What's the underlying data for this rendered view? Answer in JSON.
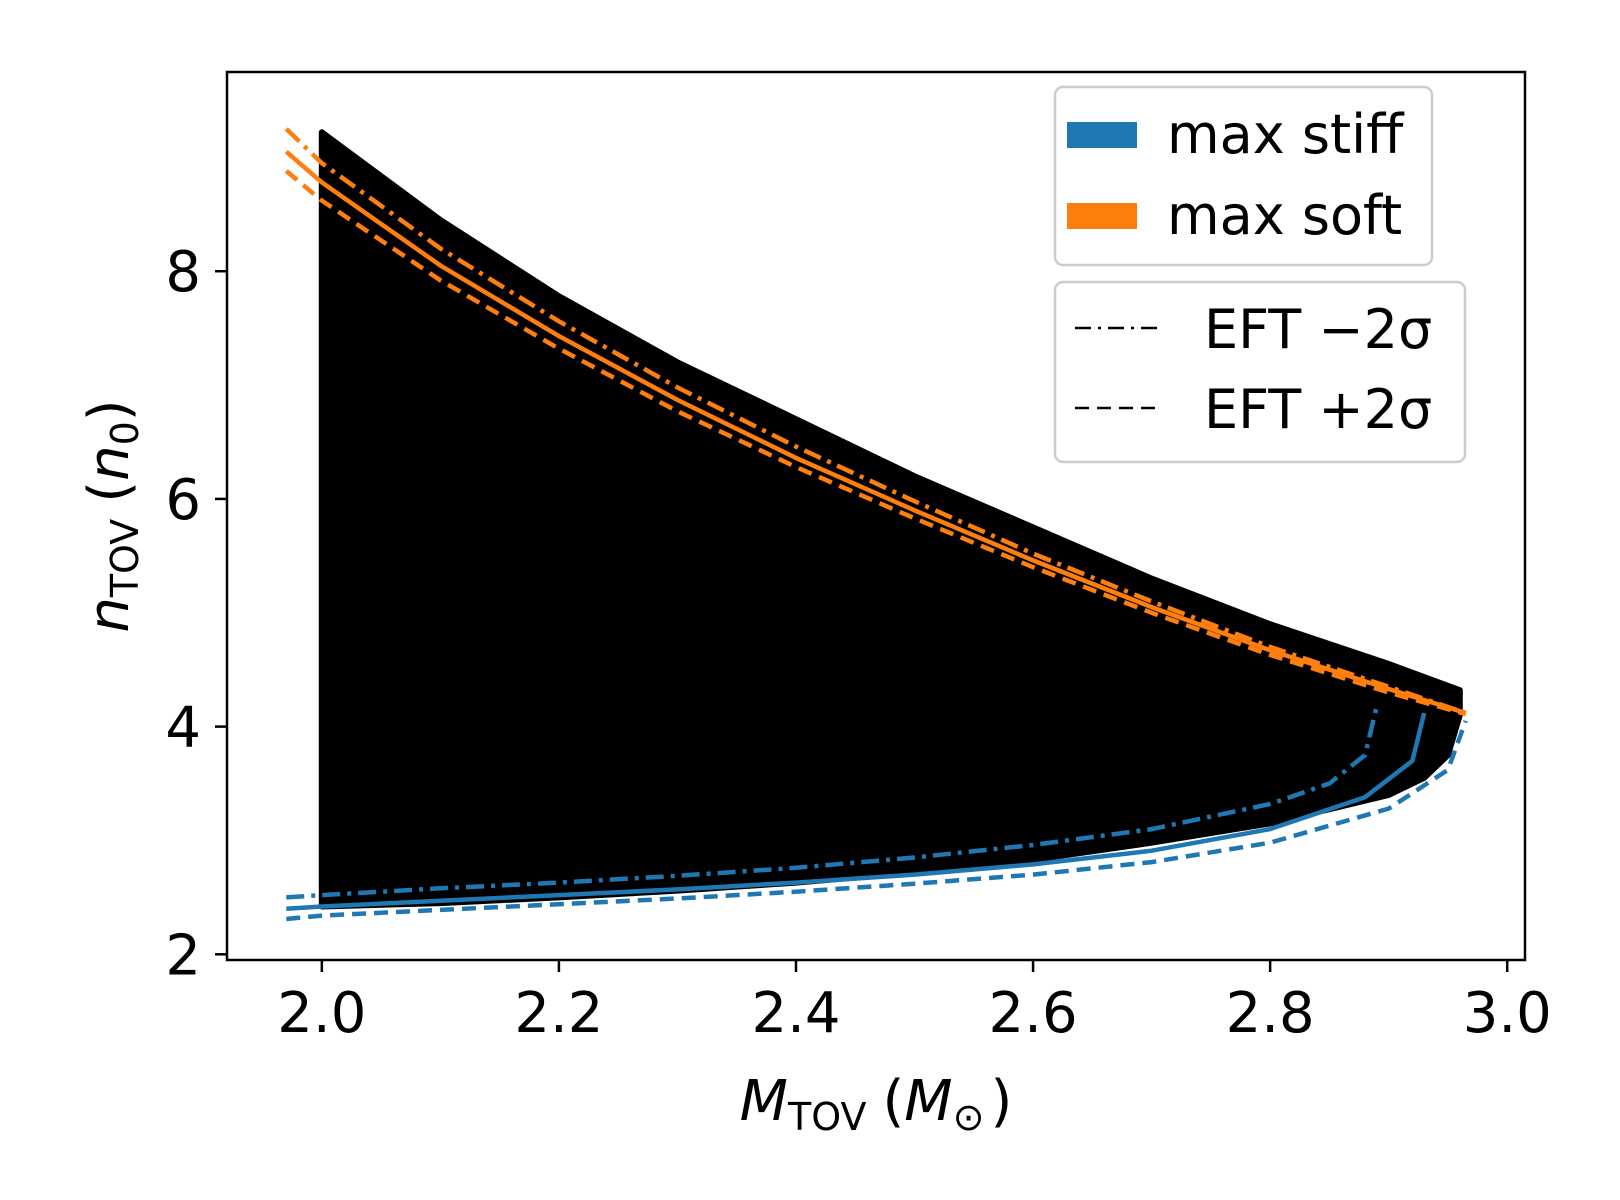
{
  "chart_data": {
    "type": "scatter",
    "title": "",
    "xlabel": {
      "main": "M",
      "sub": "TOV",
      "unit_open": "(",
      "unit_main": "M",
      "unit_sub": "⊙",
      "unit_close": ")"
    },
    "ylabel": {
      "main": "n",
      "sub": "TOV",
      "unit_open": "(",
      "unit_main": "n",
      "unit_sub": "0",
      "unit_close": ")"
    },
    "xlim": [
      1.92,
      3.015
    ],
    "ylim": [
      1.95,
      9.75
    ],
    "x_ticks": [
      2.0,
      2.2,
      2.4,
      2.6,
      2.8,
      3.0
    ],
    "x_tick_labels": [
      "2.0",
      "2.2",
      "2.4",
      "2.6",
      "2.8",
      "3.0"
    ],
    "y_ticks": [
      2,
      4,
      6,
      8
    ],
    "y_tick_labels": [
      "2",
      "4",
      "6",
      "8"
    ],
    "grid": false,
    "scatter_region": {
      "color": "#000000",
      "upper_boundary": [
        {
          "x": 2.0,
          "y": 9.22
        },
        {
          "x": 2.1,
          "y": 8.45
        },
        {
          "x": 2.2,
          "y": 7.78
        },
        {
          "x": 2.3,
          "y": 7.2
        },
        {
          "x": 2.4,
          "y": 6.7
        },
        {
          "x": 2.5,
          "y": 6.2
        },
        {
          "x": 2.6,
          "y": 5.75
        },
        {
          "x": 2.7,
          "y": 5.3
        },
        {
          "x": 2.8,
          "y": 4.9
        },
        {
          "x": 2.9,
          "y": 4.55
        },
        {
          "x": 2.96,
          "y": 4.32
        }
      ],
      "lower_boundary": [
        {
          "x": 2.96,
          "y": 4.1
        },
        {
          "x": 2.95,
          "y": 3.75
        },
        {
          "x": 2.93,
          "y": 3.55
        },
        {
          "x": 2.9,
          "y": 3.4
        },
        {
          "x": 2.8,
          "y": 3.15
        },
        {
          "x": 2.7,
          "y": 2.98
        },
        {
          "x": 2.6,
          "y": 2.83
        },
        {
          "x": 2.5,
          "y": 2.72
        },
        {
          "x": 2.4,
          "y": 2.63
        },
        {
          "x": 2.3,
          "y": 2.56
        },
        {
          "x": 2.2,
          "y": 2.5
        },
        {
          "x": 2.1,
          "y": 2.45
        },
        {
          "x": 2.0,
          "y": 2.42
        }
      ]
    },
    "series": [
      {
        "name": "max stiff",
        "group": "stiff",
        "style": "dashdot",
        "color": "#1f77b4",
        "x": [
          1.97,
          2.0,
          2.1,
          2.2,
          2.3,
          2.4,
          2.5,
          2.6,
          2.7,
          2.8,
          2.85,
          2.88,
          2.89
        ],
        "y": [
          2.5,
          2.52,
          2.58,
          2.63,
          2.69,
          2.76,
          2.85,
          2.96,
          3.1,
          3.32,
          3.5,
          3.75,
          4.18
        ]
      },
      {
        "name": "max stiff",
        "group": "stiff",
        "style": "solid",
        "color": "#1f77b4",
        "x": [
          1.97,
          2.0,
          2.1,
          2.2,
          2.3,
          2.4,
          2.5,
          2.6,
          2.7,
          2.8,
          2.88,
          2.92,
          2.93
        ],
        "y": [
          2.4,
          2.42,
          2.47,
          2.52,
          2.57,
          2.63,
          2.7,
          2.79,
          2.91,
          3.1,
          3.38,
          3.7,
          4.12
        ]
      },
      {
        "name": "max stiff",
        "group": "stiff",
        "style": "dashed",
        "color": "#1f77b4",
        "x": [
          1.97,
          2.0,
          2.1,
          2.2,
          2.3,
          2.4,
          2.5,
          2.6,
          2.7,
          2.8,
          2.9,
          2.95,
          2.965
        ],
        "y": [
          2.31,
          2.34,
          2.39,
          2.44,
          2.49,
          2.55,
          2.62,
          2.7,
          2.81,
          2.98,
          3.28,
          3.62,
          4.05
        ]
      },
      {
        "name": "max soft",
        "group": "soft",
        "style": "dashdot",
        "color": "#ff7f0e",
        "x": [
          1.97,
          2.0,
          2.1,
          2.2,
          2.3,
          2.4,
          2.5,
          2.6,
          2.7,
          2.8,
          2.9,
          2.965
        ],
        "y": [
          9.25,
          8.95,
          8.2,
          7.56,
          6.98,
          6.46,
          5.98,
          5.52,
          5.1,
          4.7,
          4.35,
          4.12
        ]
      },
      {
        "name": "max soft",
        "group": "soft",
        "style": "solid",
        "color": "#ff7f0e",
        "x": [
          1.97,
          2.0,
          2.1,
          2.2,
          2.3,
          2.4,
          2.5,
          2.6,
          2.7,
          2.8,
          2.9,
          2.965
        ],
        "y": [
          9.05,
          8.78,
          8.05,
          7.43,
          6.87,
          6.36,
          5.9,
          5.46,
          5.05,
          4.67,
          4.33,
          4.12
        ]
      },
      {
        "name": "max soft",
        "group": "soft",
        "style": "dashed",
        "color": "#ff7f0e",
        "x": [
          1.97,
          2.0,
          2.1,
          2.2,
          2.3,
          2.4,
          2.5,
          2.6,
          2.7,
          2.8,
          2.9,
          2.965
        ],
        "y": [
          8.88,
          8.62,
          7.92,
          7.32,
          6.77,
          6.28,
          5.83,
          5.4,
          5.0,
          4.63,
          4.3,
          4.11
        ]
      }
    ],
    "legend_colors": {
      "placement": "upper right",
      "entries": [
        {
          "label": "max stiff",
          "color": "#1f77b4"
        },
        {
          "label": "max soft",
          "color": "#ff7f0e"
        }
      ]
    },
    "legend_styles": {
      "placement": "upper right",
      "entries": [
        {
          "label": "EFT −2σ",
          "style": "dashdot"
        },
        {
          "label": "EFT +2σ",
          "style": "dashed"
        }
      ]
    }
  }
}
